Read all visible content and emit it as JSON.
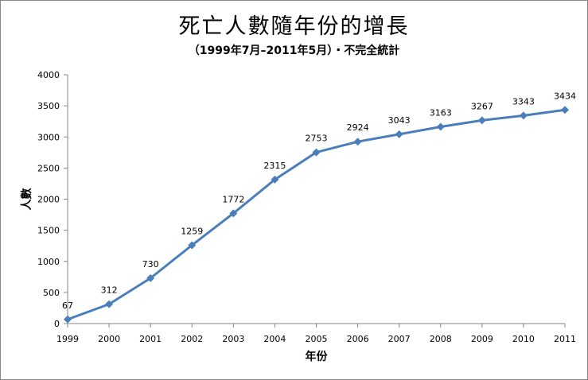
{
  "chart_data": {
    "type": "line",
    "title": "死亡人數隨年份的增長",
    "subtitle": "（1999年7月–2011年5月）・不完全統計",
    "xlabel": "年份",
    "ylabel": "人數",
    "categories": [
      "1999",
      "2000",
      "2001",
      "2002",
      "2003",
      "2004",
      "2005",
      "2006",
      "2007",
      "2008",
      "2009",
      "2010",
      "2011"
    ],
    "values": [
      67,
      312,
      730,
      1259,
      1772,
      2315,
      2753,
      2924,
      3043,
      3163,
      3267,
      3343,
      3434
    ],
    "ylim": [
      0,
      4000
    ],
    "yticks": [
      0,
      500,
      1000,
      1500,
      2000,
      2500,
      3000,
      3500,
      4000
    ],
    "grid": false,
    "legend": "none",
    "line_color": "#4a7ebb"
  }
}
